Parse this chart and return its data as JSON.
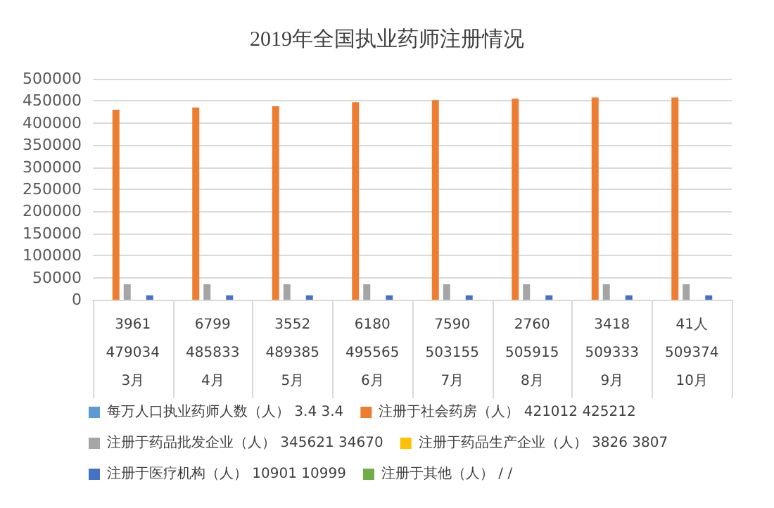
{
  "chart_data": {
    "type": "bar",
    "title": "2019年全国执业药师注册情况",
    "categories": [
      "3961\n479034\n3月",
      "6799\n485833\n4月",
      "3552\n489385\n5月",
      "6180\n495565\n6月",
      "7590\n503155\n7月",
      "2760\n505915\n8月",
      "3418\n509333\n9月",
      "41人\n509374\n10月"
    ],
    "series": [
      {
        "name": "每万人口执业药师人数（人） 3.4 3.4",
        "color": "#5b9bd5",
        "values": [
          0,
          0,
          0,
          0,
          0,
          0,
          0,
          0
        ]
      },
      {
        "name": "注册于社会药房（人） 421012 425212",
        "color": "#ed7d31",
        "values": [
          430000,
          435000,
          438000,
          447000,
          452000,
          455000,
          458000,
          458000
        ]
      },
      {
        "name": "注册于药品批发企业（人） 345621 34670",
        "color": "#a5a5a5",
        "values": [
          35000,
          35000,
          35000,
          35000,
          35000,
          35000,
          35000,
          35000
        ]
      },
      {
        "name": "注册于药品生产企业（人） 3826 3807",
        "color": "#ffc000",
        "values": [
          null,
          null,
          null,
          null,
          null,
          null,
          null,
          null
        ]
      },
      {
        "name": "注册于医疗机构（人） 10901 10999",
        "color": "#4472c4",
        "values": [
          10000,
          10000,
          10000,
          10000,
          10000,
          10000,
          10000,
          10000
        ]
      },
      {
        "name": "注册于其他（人） / /",
        "color": "#70ad47",
        "values": [
          null,
          null,
          null,
          null,
          null,
          null,
          null,
          null
        ]
      }
    ],
    "ylim": [
      0,
      500000
    ],
    "yticks": [
      0,
      50000,
      100000,
      150000,
      200000,
      250000,
      300000,
      350000,
      400000,
      450000,
      500000
    ],
    "grid": "y",
    "legend": "bottom"
  }
}
